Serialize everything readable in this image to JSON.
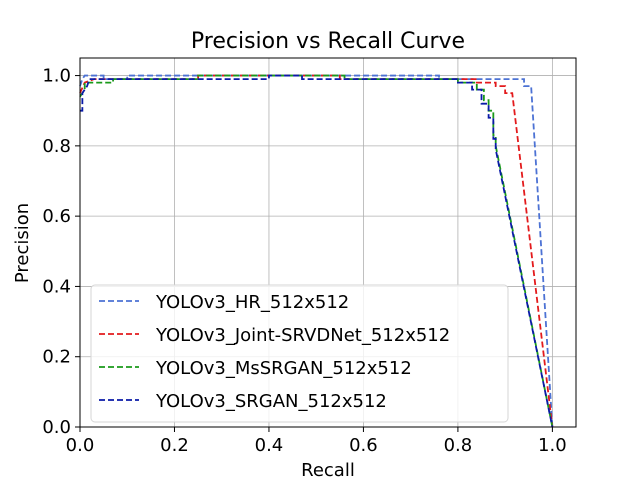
{
  "chart_data": {
    "type": "line",
    "title": "Precision vs Recall Curve",
    "xlabel": "Recall",
    "ylabel": "Precision",
    "xlim": [
      0.0,
      1.05
    ],
    "ylim": [
      0.0,
      1.05
    ],
    "grid": true,
    "legend_position": "lower-left",
    "xticks": [
      "0.0",
      "0.2",
      "0.4",
      "0.6",
      "0.8",
      "1.0"
    ],
    "xtick_values": [
      0.0,
      0.2,
      0.4,
      0.6,
      0.8,
      1.0
    ],
    "yticks": [
      "0.0",
      "0.2",
      "0.4",
      "0.6",
      "0.8",
      "1.0"
    ],
    "ytick_values": [
      0.0,
      0.2,
      0.4,
      0.6,
      0.8,
      1.0
    ],
    "series": [
      {
        "name": "YOLOv3_HR_512x512",
        "color": "#4c72d4",
        "dash": "dashed",
        "points": [
          [
            0.0,
            0.97
          ],
          [
            0.005,
            0.99
          ],
          [
            0.01,
            1.0
          ],
          [
            0.05,
            1.0
          ],
          [
            0.05,
            0.99
          ],
          [
            0.1,
            0.99
          ],
          [
            0.1,
            1.0
          ],
          [
            0.2,
            1.0
          ],
          [
            0.3,
            1.0
          ],
          [
            0.4,
            1.0
          ],
          [
            0.5,
            1.0
          ],
          [
            0.6,
            1.0
          ],
          [
            0.7,
            1.0
          ],
          [
            0.76,
            1.0
          ],
          [
            0.76,
            0.99
          ],
          [
            0.85,
            0.99
          ],
          [
            0.94,
            0.99
          ],
          [
            0.94,
            0.97
          ],
          [
            0.955,
            0.97
          ],
          [
            1.0,
            0.0
          ]
        ]
      },
      {
        "name": "YOLOv3_Joint-SRVDNet_512x512",
        "color": "#e31a1c",
        "dash": "dashed",
        "points": [
          [
            0.0,
            0.95
          ],
          [
            0.01,
            0.98
          ],
          [
            0.03,
            0.99
          ],
          [
            0.25,
            0.99
          ],
          [
            0.25,
            1.0
          ],
          [
            0.55,
            1.0
          ],
          [
            0.55,
            0.99
          ],
          [
            0.8,
            0.99
          ],
          [
            0.84,
            0.99
          ],
          [
            0.84,
            0.98
          ],
          [
            0.88,
            0.98
          ],
          [
            0.88,
            0.97
          ],
          [
            0.9,
            0.97
          ],
          [
            0.9,
            0.95
          ],
          [
            0.915,
            0.95
          ],
          [
            1.0,
            0.0
          ]
        ]
      },
      {
        "name": "YOLOv3_MsSRGAN_512x512",
        "color": "#1a9a1a",
        "dash": "dashed",
        "points": [
          [
            0.0,
            0.94
          ],
          [
            0.01,
            0.96
          ],
          [
            0.01,
            0.98
          ],
          [
            0.07,
            0.98
          ],
          [
            0.07,
            0.99
          ],
          [
            0.25,
            0.99
          ],
          [
            0.25,
            1.0
          ],
          [
            0.56,
            1.0
          ],
          [
            0.56,
            0.99
          ],
          [
            0.8,
            0.99
          ],
          [
            0.8,
            0.98
          ],
          [
            0.84,
            0.98
          ],
          [
            0.84,
            0.96
          ],
          [
            0.855,
            0.96
          ],
          [
            0.855,
            0.93
          ],
          [
            0.865,
            0.93
          ],
          [
            0.865,
            0.9
          ],
          [
            0.875,
            0.9
          ],
          [
            0.875,
            0.83
          ],
          [
            0.88,
            0.83
          ],
          [
            0.88,
            0.8
          ],
          [
            1.0,
            0.0
          ]
        ]
      },
      {
        "name": "YOLOv3_SRGAN_512x512",
        "color": "#0a1aa8",
        "dash": "dashed",
        "points": [
          [
            0.0,
            0.9
          ],
          [
            0.005,
            0.9
          ],
          [
            0.005,
            0.95
          ],
          [
            0.015,
            0.97
          ],
          [
            0.02,
            0.99
          ],
          [
            0.4,
            0.99
          ],
          [
            0.4,
            1.0
          ],
          [
            0.47,
            1.0
          ],
          [
            0.47,
            0.99
          ],
          [
            0.8,
            0.99
          ],
          [
            0.8,
            0.98
          ],
          [
            0.83,
            0.98
          ],
          [
            0.83,
            0.96
          ],
          [
            0.85,
            0.96
          ],
          [
            0.85,
            0.92
          ],
          [
            0.865,
            0.92
          ],
          [
            0.865,
            0.88
          ],
          [
            0.875,
            0.88
          ],
          [
            0.875,
            0.82
          ],
          [
            0.88,
            0.82
          ],
          [
            0.88,
            0.79
          ],
          [
            1.0,
            0.0
          ]
        ]
      }
    ]
  }
}
